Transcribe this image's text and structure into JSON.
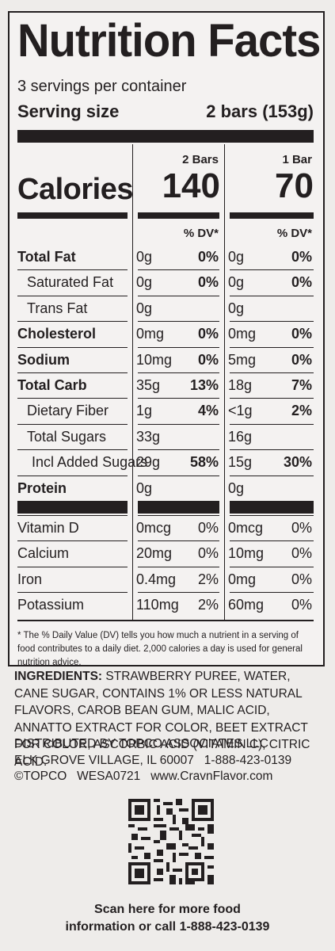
{
  "label": {
    "title": "Nutrition Facts",
    "servings_per_container": "3 servings per container",
    "serving_size_label": "Serving size",
    "serving_size_value": "2 bars (153g)",
    "columns": [
      "2 Bars",
      "1 Bar"
    ],
    "calories_label": "Calories",
    "calories": [
      "140",
      "70"
    ],
    "dv_header": "% DV*",
    "nutrients": [
      {
        "name": "Total Fat",
        "bold": true,
        "indent": 0,
        "a_amt": "0g",
        "a_dv": "0%",
        "b_amt": "0g",
        "b_dv": "0%"
      },
      {
        "name": "Saturated Fat",
        "bold": false,
        "indent": 1,
        "a_amt": "0g",
        "a_dv": "0%",
        "b_amt": "0g",
        "b_dv": "0%"
      },
      {
        "name": "Trans Fat",
        "bold": false,
        "indent": 1,
        "a_amt": "0g",
        "a_dv": "",
        "b_amt": "0g",
        "b_dv": ""
      },
      {
        "name": "Cholesterol",
        "bold": true,
        "indent": 0,
        "a_amt": "0mg",
        "a_dv": "0%",
        "b_amt": "0mg",
        "b_dv": "0%"
      },
      {
        "name": "Sodium",
        "bold": true,
        "indent": 0,
        "a_amt": "10mg",
        "a_dv": "0%",
        "b_amt": "5mg",
        "b_dv": "0%"
      },
      {
        "name": "Total Carb",
        "bold": true,
        "indent": 0,
        "a_amt": "35g",
        "a_dv": "13%",
        "b_amt": "18g",
        "b_dv": "7%"
      },
      {
        "name": "Dietary Fiber",
        "bold": false,
        "indent": 1,
        "a_amt": "1g",
        "a_dv": "4%",
        "b_amt": "<1g",
        "b_dv": "2%"
      },
      {
        "name": "Total Sugars",
        "bold": false,
        "indent": 1,
        "a_amt": "33g",
        "a_dv": "",
        "b_amt": "16g",
        "b_dv": ""
      },
      {
        "name": "Incl Added Sugars",
        "bold": false,
        "indent": 2,
        "a_amt": "29g",
        "a_dv": "58%",
        "b_amt": "15g",
        "b_dv": "30%"
      },
      {
        "name": "Protein",
        "bold": true,
        "indent": 0,
        "a_amt": "0g",
        "a_dv": "",
        "b_amt": "0g",
        "b_dv": ""
      }
    ],
    "vitamins": [
      {
        "name": "Vitamin D",
        "a_amt": "0mcg",
        "a_dv": "0%",
        "b_amt": "0mcg",
        "b_dv": "0%"
      },
      {
        "name": "Calcium",
        "a_amt": "20mg",
        "a_dv": "0%",
        "b_amt": "10mg",
        "b_dv": "0%"
      },
      {
        "name": "Iron",
        "a_amt": "0.4mg",
        "a_dv": "2%",
        "b_amt": "0mg",
        "b_dv": "0%"
      },
      {
        "name": "Potassium",
        "a_amt": "110mg",
        "a_dv": "2%",
        "b_amt": "60mg",
        "b_dv": "0%"
      }
    ],
    "footnote": "* The % Daily Value (DV) tells you how much a nutrient in a serving of food contributes to a daily diet. 2,000 calories a day is used for general nutrition advice."
  },
  "ingredients": {
    "label": "INGREDIENTS:",
    "text": "STRAWBERRY PUREE, WATER, CANE SUGAR, CONTAINS 1% OR LESS NATURAL FLAVORS, CAROB BEAN GUM, MALIC ACID, ANNATTO EXTRACT FOR COLOR, BEET EXTRACT FOR COLOR, ASCORBIC ACID (VITAMIN C), CITRIC ACID."
  },
  "distributor": {
    "line1": "DISTRIBUTED BY TOPCO ASSOCIATES LLC",
    "line2": "ELK GROVE VILLAGE, IL 60007   1-888-423-0139",
    "line3": "©TOPCO   WESA0721   www.CravnFlavor.com"
  },
  "qr": {
    "scan_line1": "Scan here for more food",
    "scan_line2": "information or call 1-888-423-0139"
  }
}
